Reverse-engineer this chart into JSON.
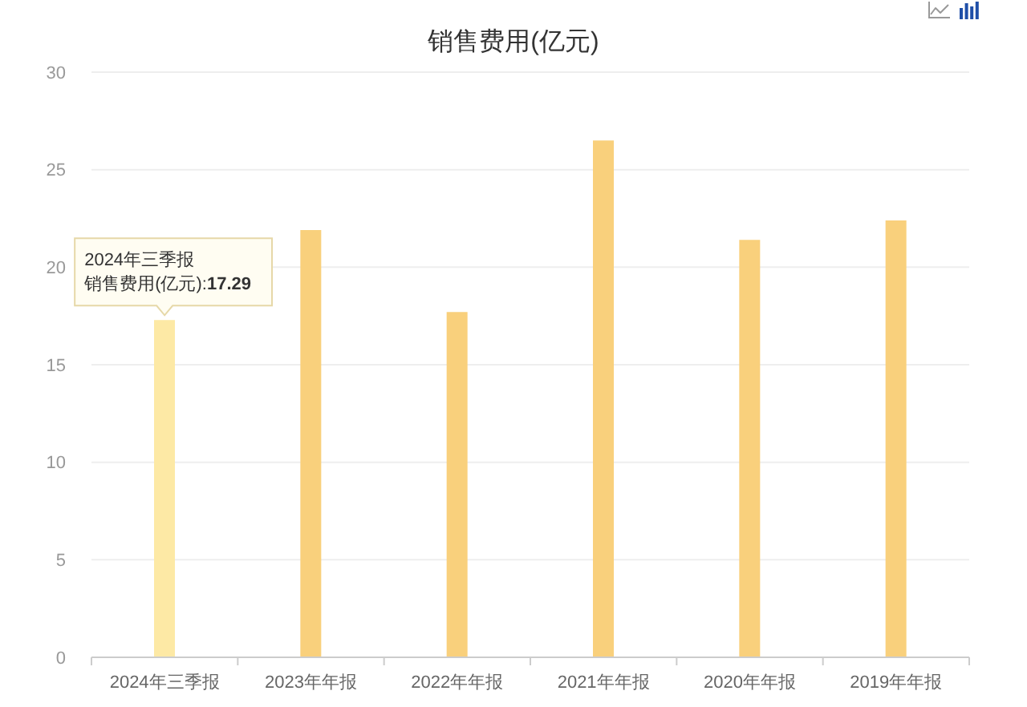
{
  "chart_data": {
    "type": "bar",
    "title": "销售费用(亿元)",
    "categories": [
      "2024年三季报",
      "2023年年报",
      "2022年年报",
      "2021年年报",
      "2020年年报",
      "2019年年报"
    ],
    "values": [
      17.29,
      21.9,
      17.7,
      26.5,
      21.4,
      22.4
    ],
    "colors": [
      "#fde9a5",
      "#f9d07c",
      "#f9d07c",
      "#f9d07c",
      "#f9d07c",
      "#f9d07c"
    ],
    "ylim": [
      0,
      30
    ],
    "yticks": [
      0,
      5,
      10,
      15,
      20,
      25,
      30
    ],
    "grid": "y",
    "annotations": [
      {
        "text": "2024年三季报",
        "x": "2024年三季报",
        "y": 17.29
      },
      {
        "text": "销售费用(亿元):17.29",
        "x": "2024年三季报",
        "y": 17.29
      }
    ]
  }
}
